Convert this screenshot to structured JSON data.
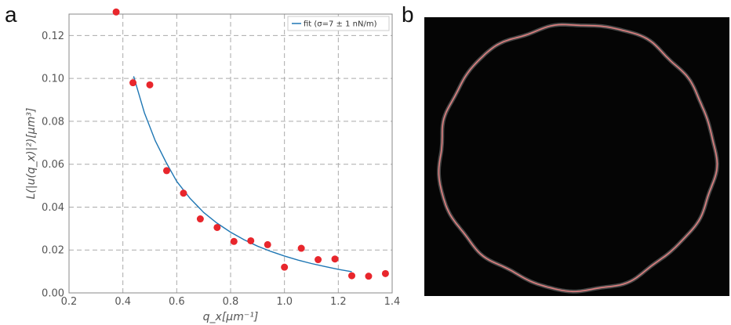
{
  "panels": {
    "a_label": "a",
    "b_label": "b"
  },
  "chart_data": {
    "type": "scatter",
    "title": "",
    "xlabel": "q_x[μm⁻¹]",
    "ylabel": "L(|u(q_x)|²)[μm³]",
    "xlim": [
      0.2,
      1.4
    ],
    "ylim": [
      0.0,
      0.13
    ],
    "xticks": [
      "0.2",
      "0.4",
      "0.6",
      "0.8",
      "1.0",
      "1.2",
      "1.4"
    ],
    "yticks": [
      "0.00",
      "0.02",
      "0.04",
      "0.06",
      "0.08",
      "0.10",
      "0.12"
    ],
    "grid": true,
    "legend_placement": "top-right",
    "colors": {
      "points": "#e8262c",
      "fit": "#1f77b4"
    },
    "series": [
      {
        "kind": "scatter",
        "x": [
          0.375,
          0.4375,
          0.5,
          0.5625,
          0.625,
          0.6875,
          0.75,
          0.8125,
          0.875,
          0.9375,
          1.0,
          1.0625,
          1.125,
          1.1875,
          1.25,
          1.3125,
          1.375
        ],
        "y": [
          0.131,
          0.098,
          0.097,
          0.057,
          0.0465,
          0.0345,
          0.0305,
          0.024,
          0.0243,
          0.0225,
          0.012,
          0.0208,
          0.0155,
          0.0158,
          0.008,
          0.0078,
          0.009
        ]
      },
      {
        "kind": "line",
        "name": "fit (σ=7 ± 1 nN/m)",
        "x": [
          0.44,
          0.48,
          0.52,
          0.56,
          0.6,
          0.65,
          0.7,
          0.75,
          0.8,
          0.85,
          0.9,
          0.95,
          1.0,
          1.05,
          1.1,
          1.15,
          1.2,
          1.25
        ],
        "y": [
          0.101,
          0.084,
          0.071,
          0.061,
          0.052,
          0.044,
          0.0375,
          0.0325,
          0.0283,
          0.0248,
          0.0218,
          0.0193,
          0.0172,
          0.0153,
          0.0137,
          0.0123,
          0.011,
          0.0099
        ]
      }
    ]
  },
  "image_panel": {
    "background": "#050505",
    "contour_color": "#e08080"
  }
}
